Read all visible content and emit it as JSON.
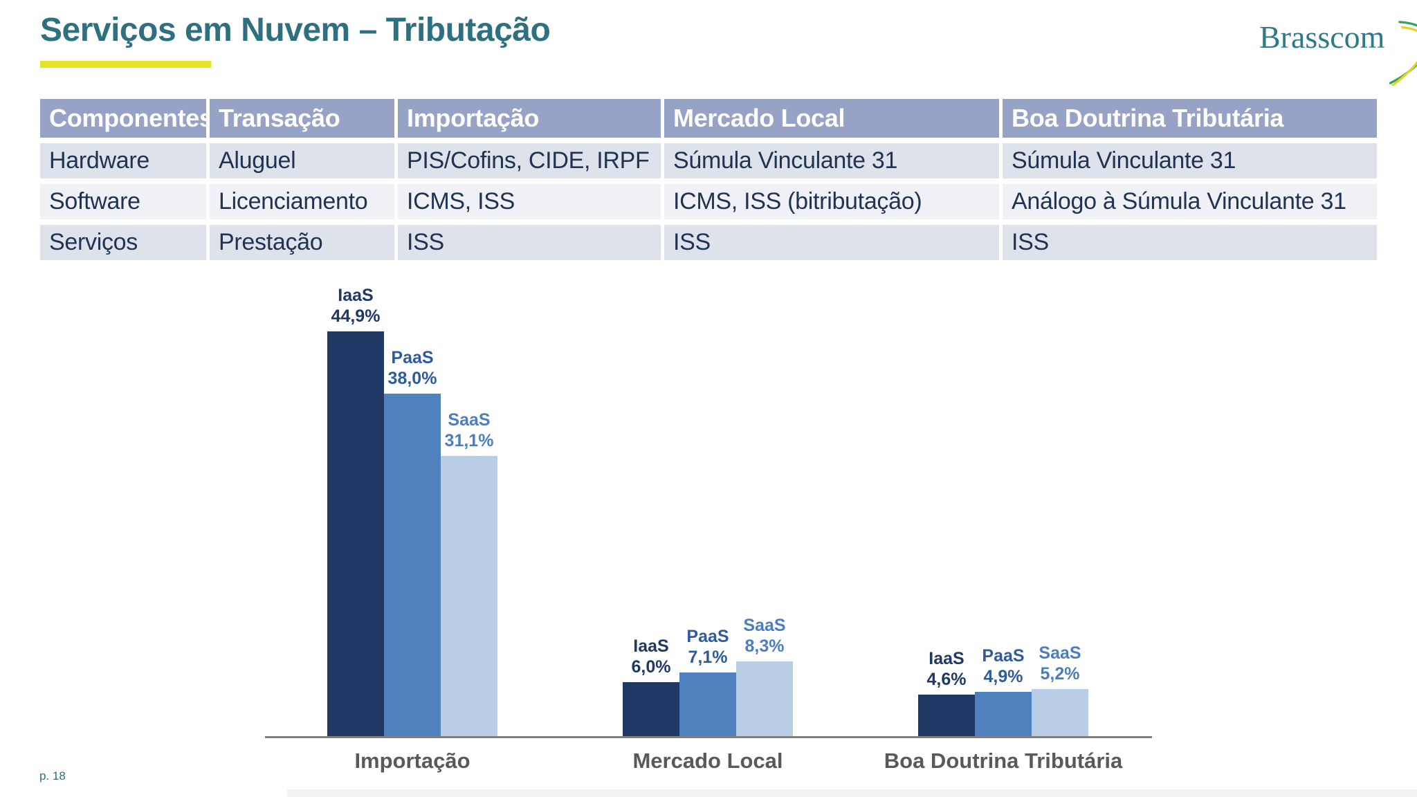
{
  "slide": {
    "title": "Serviços em Nuvem – Tributação",
    "page_number": "p. 18",
    "logo_text": "Brasscom"
  },
  "colors": {
    "title_teal": "#2E6F80",
    "underline_yellow": "#E7E324",
    "table_header_bg": "#96A3C6",
    "table_row_dark": "#DEE2EB",
    "table_row_light": "#EFF1F7",
    "table_text": "#203353",
    "logo_teal": "#2C7A8B",
    "logo_swoosh_green": "#33A457",
    "logo_swoosh_yellow": "#E3D428"
  },
  "table": {
    "headers": [
      "Componentes",
      "Transação",
      "Importação",
      "Mercado Local",
      "Boa Doutrina Tributária"
    ],
    "rows": [
      [
        "Hardware",
        "Aluguel",
        "PIS/Cofins, CIDE, IRPF",
        "Súmula Vinculante 31",
        "Súmula Vinculante 31"
      ],
      [
        "Software",
        "Licenciamento",
        "ICMS, ISS",
        "ICMS, ISS (bitributação)",
        "Análogo à Súmula Vinculante 31"
      ],
      [
        "Serviços",
        "Prestação",
        "ISS",
        "ISS",
        "ISS"
      ]
    ]
  },
  "chart_data": {
    "type": "bar",
    "title": "",
    "xlabel": "",
    "ylabel": "",
    "categories": [
      "Importação",
      "Mercado Local",
      "Boa Doutrina Tributária"
    ],
    "series": [
      {
        "name": "IaaS",
        "values": [
          44.9,
          6.0,
          4.6
        ],
        "color": "#1F3864",
        "label_color": "#1F3864"
      },
      {
        "name": "PaaS",
        "values": [
          38.0,
          7.1,
          4.9
        ],
        "color": "#4E81BD",
        "label_color": "#2E5B9C"
      },
      {
        "name": "SaaS",
        "values": [
          31.1,
          8.3,
          5.2
        ],
        "color": "#B9CDE5",
        "label_color": "#4A7EBE"
      }
    ],
    "value_labels": [
      [
        "44,9%",
        "6,0%",
        "4,6%"
      ],
      [
        "38,0%",
        "7,1%",
        "4,9%"
      ],
      [
        "31,1%",
        "8,3%",
        "5,2%"
      ]
    ],
    "ylim": [
      0,
      50
    ],
    "grid": false,
    "legend_position": "labels-above-bars",
    "axis_color": "#7F7F7F",
    "category_label_color": "#595959"
  }
}
